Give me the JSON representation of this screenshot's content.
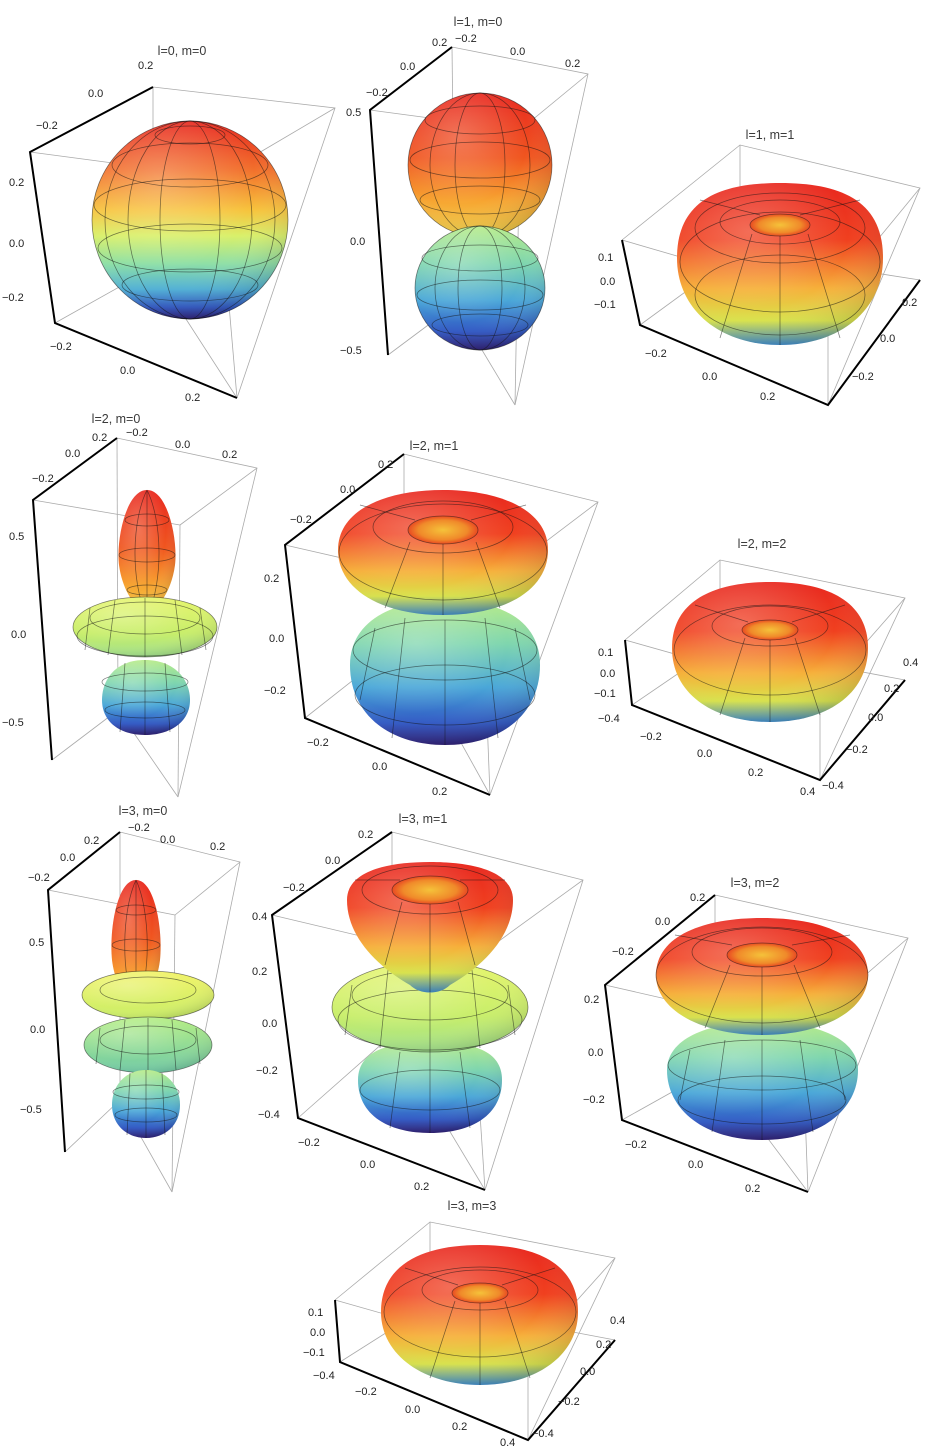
{
  "panels": [
    {
      "id": "l0m0",
      "title": "l=0, m=0",
      "l": 0,
      "m": 0,
      "ticks_left": [
        "0.2",
        "0.0",
        "−0.2"
      ],
      "ticks_bottom": [
        "−0.2",
        "0.0",
        "0.2"
      ],
      "ticks_top": [
        "0.2",
        "0.0",
        "−0.2"
      ]
    },
    {
      "id": "l1m0",
      "title": "l=1, m=0",
      "l": 1,
      "m": 0,
      "ticks_left": [
        "0.5",
        "0.0",
        "−0.5"
      ],
      "ticks_top": [
        "0.2",
        "0.0",
        "−0.2",
        "−0.2",
        "0.0",
        "0.2"
      ]
    },
    {
      "id": "l1m1",
      "title": "l=1, m=1",
      "l": 1,
      "m": 1,
      "ticks_left": [
        "0.1",
        "0.0",
        "−0.1"
      ],
      "ticks_bottom": [
        "−0.2",
        "0.0",
        "0.2"
      ],
      "ticks_right": [
        "0.2",
        "0.0",
        "−0.2"
      ]
    },
    {
      "id": "l2m0",
      "title": "l=2, m=0",
      "l": 2,
      "m": 0,
      "ticks_left": [
        "0.5",
        "0.0",
        "−0.5"
      ],
      "ticks_top": [
        "0.2",
        "−0.2",
        "0.0",
        "0.2",
        "0.0",
        "−0.2"
      ]
    },
    {
      "id": "l2m1",
      "title": "l=2, m=1",
      "l": 2,
      "m": 1,
      "ticks_left": [
        "0.2",
        "0.0",
        "−0.2"
      ],
      "ticks_bottom": [
        "−0.2",
        "0.0",
        "0.2"
      ],
      "ticks_top": [
        "0.2",
        "0.0",
        "−0.2"
      ]
    },
    {
      "id": "l2m2",
      "title": "l=2, m=2",
      "l": 2,
      "m": 2,
      "ticks_left": [
        "0.1",
        "0.0",
        "−0.1",
        "−0.4"
      ],
      "ticks_bottom": [
        "−0.2",
        "0.0",
        "0.2",
        "0.4"
      ],
      "ticks_right": [
        "0.4",
        "0.2",
        "0.0",
        "−0.2",
        "−0.4"
      ]
    },
    {
      "id": "l3m0",
      "title": "l=3, m=0",
      "l": 3,
      "m": 0,
      "ticks_left": [
        "0.5",
        "0.0",
        "−0.5"
      ],
      "ticks_top": [
        "0.2",
        "−0.2",
        "0.0",
        "0.2",
        "0.0",
        "−0.2"
      ]
    },
    {
      "id": "l3m1",
      "title": "l=3, m=1",
      "l": 3,
      "m": 1,
      "ticks_left": [
        "0.4",
        "0.2",
        "0.0",
        "−0.2",
        "−0.4"
      ],
      "ticks_bottom": [
        "−0.2",
        "0.0",
        "0.2"
      ],
      "ticks_top": [
        "0.2",
        "0.0",
        "−0.2"
      ]
    },
    {
      "id": "l3m2",
      "title": "l=3, m=2",
      "l": 3,
      "m": 2,
      "ticks_left": [
        "0.2",
        "0.0",
        "−0.2"
      ],
      "ticks_bottom": [
        "−0.2",
        "0.0",
        "0.2"
      ],
      "ticks_top": [
        "0.2",
        "0.0",
        "−0.2"
      ]
    },
    {
      "id": "l3m3",
      "title": "l=3, m=3",
      "l": 3,
      "m": 3,
      "ticks_left": [
        "0.1",
        "0.0",
        "−0.1",
        "−0.4"
      ],
      "ticks_bottom": [
        "−0.2",
        "0.0",
        "0.2",
        "0.4"
      ],
      "ticks_right": [
        "0.4",
        "0.2",
        "0.0",
        "−0.2",
        "−0.4"
      ]
    }
  ],
  "colormap": [
    "#2a1a73",
    "#2f57c4",
    "#4fb0d6",
    "#8fe0a6",
    "#d9f06a",
    "#f7c33c",
    "#f2712c",
    "#e8281f"
  ]
}
